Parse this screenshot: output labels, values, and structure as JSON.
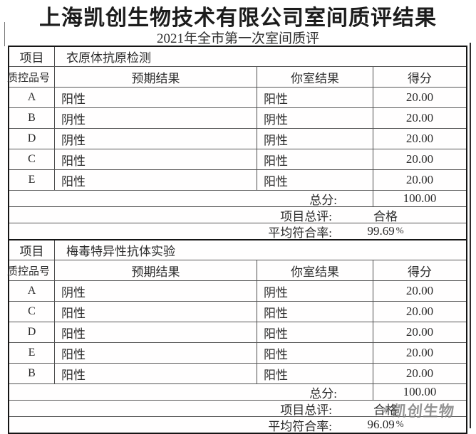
{
  "page": {
    "title": "上海凯创生物技术有限公司室间质评结果",
    "subtitle": "2021年全市第一次室间质评"
  },
  "labels": {
    "item": "项目",
    "qc_id": "质控品号",
    "expected": "预期结果",
    "your_lab": "你室结果",
    "score": "得分",
    "total": "总分:",
    "overall": "项目总评:",
    "avg_rate": "平均符合率:"
  },
  "tables": [
    {
      "item_name": "衣原体抗原检测",
      "rows": [
        {
          "id": "A",
          "expected": "阳性",
          "result": "阳性",
          "score": "20.00"
        },
        {
          "id": "B",
          "expected": "阴性",
          "result": "阴性",
          "score": "20.00"
        },
        {
          "id": "D",
          "expected": "阴性",
          "result": "阴性",
          "score": "20.00"
        },
        {
          "id": "C",
          "expected": "阳性",
          "result": "阳性",
          "score": "20.00"
        },
        {
          "id": "E",
          "expected": "阳性",
          "result": "阳性",
          "score": "20.00"
        }
      ],
      "total_score": "100.00",
      "overall_eval": "合格",
      "avg_rate": "99.69",
      "avg_rate_unit": "%"
    },
    {
      "item_name": "梅毒特异性抗体实验",
      "rows": [
        {
          "id": "A",
          "expected": "阴性",
          "result": "阴性",
          "score": "20.00"
        },
        {
          "id": "C",
          "expected": "阳性",
          "result": "阳性",
          "score": "20.00"
        },
        {
          "id": "D",
          "expected": "阳性",
          "result": "阳性",
          "score": "20.00"
        },
        {
          "id": "E",
          "expected": "阳性",
          "result": "阳性",
          "score": "20.00"
        },
        {
          "id": "B",
          "expected": "阳性",
          "result": "阳性",
          "score": "20.00"
        }
      ],
      "total_score": "100.00",
      "overall_eval": "合格",
      "avg_rate": "96.09",
      "avg_rate_unit": "%"
    }
  ],
  "watermark": {
    "icon": "✳",
    "text": "凯创生物"
  },
  "colors": {
    "text": "#2b2b2b",
    "border_outer": "#151515",
    "border_inner": "#4d4d4d",
    "watermark_gray": "#7d7d7d"
  }
}
